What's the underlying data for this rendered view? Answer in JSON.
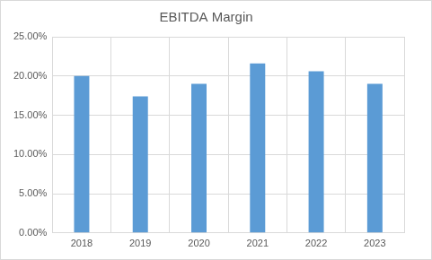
{
  "chart_data": {
    "type": "bar",
    "title": "EBITDA Margin",
    "categories": [
      "2018",
      "2019",
      "2020",
      "2021",
      "2022",
      "2023"
    ],
    "values": [
      20.0,
      17.4,
      19.0,
      21.6,
      20.6,
      19.0
    ],
    "color": "#5b9bd5",
    "ylim": [
      0,
      25
    ],
    "yticks": [
      {
        "value": 0,
        "label": "0.00%"
      },
      {
        "value": 5,
        "label": "5.00%"
      },
      {
        "value": 10,
        "label": "10.00%"
      },
      {
        "value": 15,
        "label": "15.00%"
      },
      {
        "value": 20,
        "label": "20.00%"
      },
      {
        "value": 25,
        "label": "25.00%"
      }
    ],
    "grid": true
  }
}
